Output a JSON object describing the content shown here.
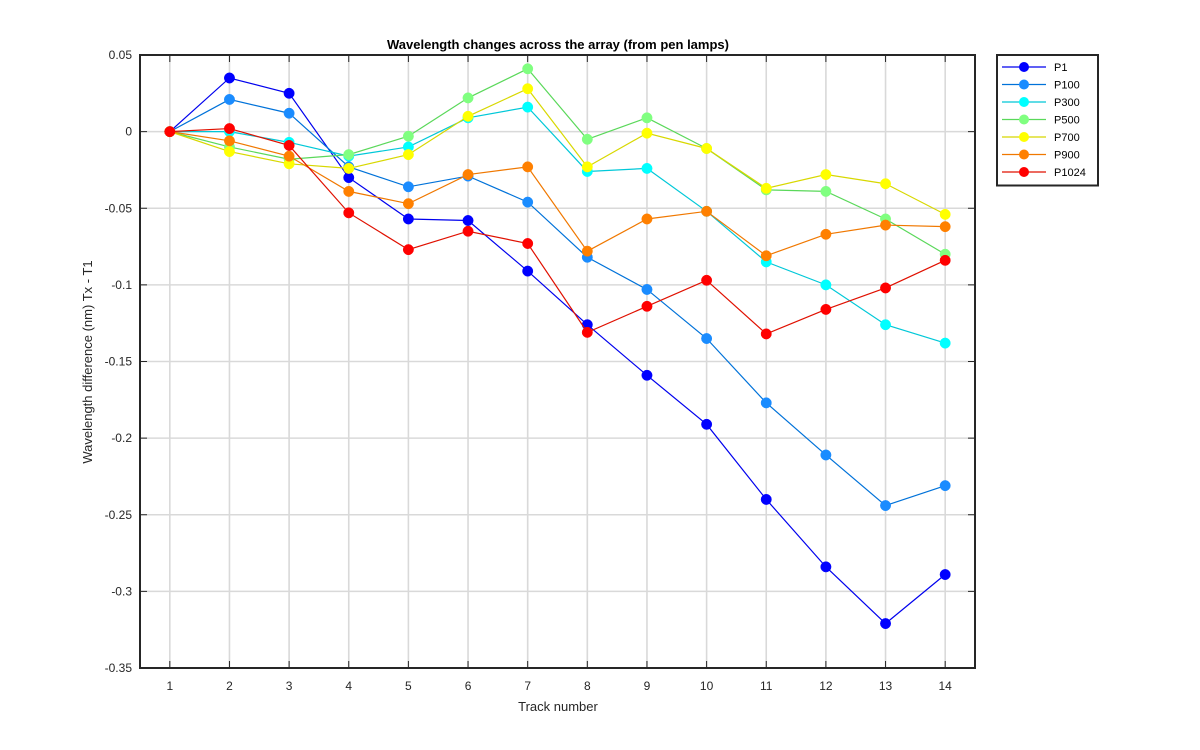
{
  "chart_data": {
    "type": "line",
    "title": "Wavelength changes across the array (from pen lamps)",
    "xlabel": "Track number",
    "ylabel": "Wavelength difference (nm) Tx - T1",
    "x": [
      1,
      2,
      3,
      4,
      5,
      6,
      7,
      8,
      9,
      10,
      11,
      12,
      13,
      14
    ],
    "xlim": [
      0.5,
      14.5
    ],
    "ylim": [
      -0.35,
      0.05
    ],
    "xticks": [
      "1",
      "2",
      "3",
      "4",
      "5",
      "6",
      "7",
      "8",
      "9",
      "10",
      "11",
      "12",
      "13",
      "14"
    ],
    "yticks": [
      0.05,
      0,
      -0.05,
      -0.1,
      -0.15,
      -0.2,
      -0.25,
      -0.3,
      -0.35
    ],
    "ytick_labels": [
      "0.05",
      "0",
      "-0.05",
      "-0.1",
      "-0.15",
      "-0.2",
      "-0.25",
      "-0.3",
      "-0.35"
    ],
    "grid": true,
    "legend_position": "outside-top-right",
    "series": [
      {
        "name": "P1",
        "color": "#0000ee",
        "marker_color": "#0000ff",
        "values": [
          0,
          0.035,
          0.025,
          -0.03,
          -0.057,
          -0.058,
          -0.091,
          -0.126,
          -0.159,
          -0.191,
          -0.24,
          -0.284,
          -0.321,
          -0.289
        ]
      },
      {
        "name": "P100",
        "color": "#0072d9",
        "marker_color": "#1a8cff",
        "values": [
          0,
          0.021,
          0.012,
          -0.023,
          -0.036,
          -0.029,
          -0.046,
          -0.082,
          -0.103,
          -0.135,
          -0.177,
          -0.211,
          -0.244,
          -0.231
        ]
      },
      {
        "name": "P300",
        "color": "#00c8d8",
        "marker_color": "#00ffff",
        "values": [
          0,
          0.0,
          -0.007,
          -0.016,
          -0.01,
          0.009,
          0.016,
          -0.026,
          -0.024,
          -0.052,
          -0.085,
          -0.1,
          -0.126,
          -0.138
        ]
      },
      {
        "name": "P500",
        "color": "#5ad85a",
        "marker_color": "#80ff80",
        "values": [
          0,
          -0.01,
          -0.018,
          -0.015,
          -0.003,
          0.022,
          0.041,
          -0.005,
          0.009,
          -0.011,
          -0.038,
          -0.039,
          -0.057,
          -0.08
        ]
      },
      {
        "name": "P700",
        "color": "#d8d800",
        "marker_color": "#ffff00",
        "values": [
          0,
          -0.013,
          -0.021,
          -0.024,
          -0.015,
          0.01,
          0.028,
          -0.023,
          -0.001,
          -0.011,
          -0.037,
          -0.028,
          -0.034,
          -0.054
        ]
      },
      {
        "name": "P900",
        "color": "#f07800",
        "marker_color": "#ff8000",
        "values": [
          0,
          -0.006,
          -0.016,
          -0.039,
          -0.047,
          -0.028,
          -0.023,
          -0.078,
          -0.057,
          -0.052,
          -0.081,
          -0.067,
          -0.061,
          -0.062
        ]
      },
      {
        "name": "P1024",
        "color": "#e01000",
        "marker_color": "#ff0000",
        "values": [
          0,
          0.002,
          -0.009,
          -0.053,
          -0.077,
          -0.065,
          -0.073,
          -0.131,
          -0.114,
          -0.097,
          -0.132,
          -0.116,
          -0.102,
          -0.084
        ]
      }
    ]
  }
}
